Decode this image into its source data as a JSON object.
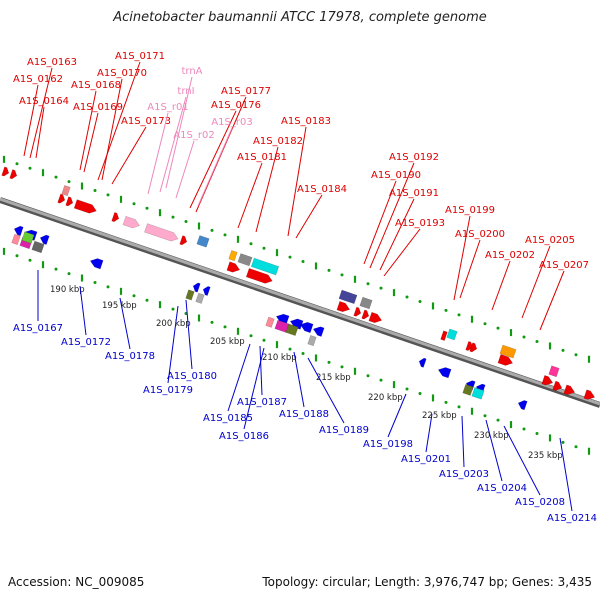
{
  "title": "Acinetobacter baumannii ATCC 17978, complete genome",
  "footer": {
    "accession": "Accession: NC_009085",
    "summary": "Topology: circular; Length: 3,976,747 bp; Genes: 3,435"
  },
  "colors": {
    "forward_label": "#dd0000",
    "reverse_label": "#0000cc",
    "rna_label": "#ee88bb",
    "forward_gene": "#ee0000",
    "reverse_gene": "#0000ee",
    "backbone": "#888888",
    "tick_dot": "#119911"
  },
  "scale_labels": [
    "190 kbp",
    "195 kbp",
    "200 kbp",
    "205 kbp",
    "210 kbp",
    "215 kbp",
    "220 kbp",
    "225 kbp",
    "230 kbp",
    "235 kbp"
  ],
  "forward_genes": [
    "A1S_0163",
    "A1S_0162",
    "A1S_0164",
    "A1S_0171",
    "A1S_0170",
    "A1S_0168",
    "A1S_0169",
    "A1S_0173",
    "A1S_0177",
    "A1S_0176",
    "A1S_0183",
    "A1S_0182",
    "A1S_0181",
    "A1S_0184",
    "A1S_0192",
    "A1S_0190",
    "A1S_0191",
    "A1S_0193",
    "A1S_0199",
    "A1S_0200",
    "A1S_0202",
    "A1S_0205",
    "A1S_0207"
  ],
  "rna_genes": [
    "trnA",
    "trnI",
    "A1S_r01",
    "A1S_r03",
    "A1S_r02"
  ],
  "reverse_genes": [
    "A1S_0167",
    "A1S_0172",
    "A1S_0178",
    "A1S_0180",
    "A1S_0179",
    "A1S_0185",
    "A1S_0187",
    "A1S_0186",
    "A1S_0188",
    "A1S_0189",
    "A1S_0198",
    "A1S_0201",
    "A1S_0203",
    "A1S_0204",
    "A1S_0208",
    "A1S_0214"
  ]
}
